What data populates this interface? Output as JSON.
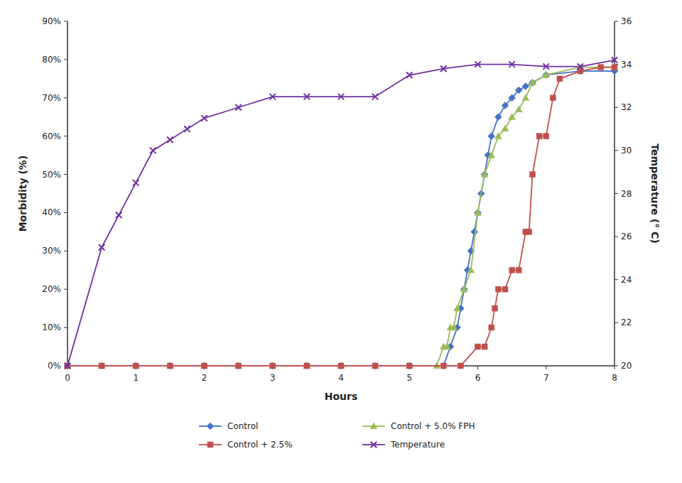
{
  "chart_data": {
    "type": "line",
    "xlabel": "Hours",
    "ylabel": "Morbidity (%)",
    "y2label": "Temperature (° C)",
    "xlim": [
      0,
      8
    ],
    "xticks": [
      0,
      1,
      2,
      3,
      4,
      5,
      6,
      7,
      8
    ],
    "ylim": [
      0,
      0.9
    ],
    "yticks": [
      {
        "value": 0,
        "label": "0%"
      },
      {
        "value": 0.1,
        "label": "10%"
      },
      {
        "value": 0.2,
        "label": "20%"
      },
      {
        "value": 0.3,
        "label": "30%"
      },
      {
        "value": 0.4,
        "label": "40%"
      },
      {
        "value": 0.5,
        "label": "50%"
      },
      {
        "value": 0.6,
        "label": "60%"
      },
      {
        "value": 0.7,
        "label": "70%"
      },
      {
        "value": 0.8,
        "label": "80%"
      },
      {
        "value": 0.9,
        "label": "90%"
      }
    ],
    "y2lim": [
      20,
      36
    ],
    "y2ticks": [
      20,
      22,
      24,
      26,
      28,
      30,
      32,
      34,
      36
    ],
    "grid": false,
    "legend": "bottom",
    "series": [
      {
        "name": "Control",
        "color": "#4472C4",
        "marker": "diamond",
        "x": [
          0,
          0.5,
          1.0,
          1.5,
          2.0,
          2.5,
          3.0,
          3.5,
          4.0,
          4.5,
          5.0,
          5.5,
          5.6,
          5.7,
          5.75,
          5.8,
          5.85,
          5.9,
          5.95,
          6.0,
          6.05,
          6.1,
          6.15,
          6.2,
          6.3,
          6.4,
          6.5,
          6.6,
          6.7,
          6.8,
          7.0,
          7.5,
          8.0
        ],
        "values": [
          0,
          0,
          0,
          0,
          0,
          0,
          0,
          0,
          0,
          0,
          0,
          0,
          0.05,
          0.1,
          0.15,
          0.2,
          0.25,
          0.3,
          0.35,
          0.4,
          0.45,
          0.5,
          0.55,
          0.6,
          0.65,
          0.68,
          0.7,
          0.72,
          0.73,
          0.74,
          0.76,
          0.77,
          0.77
        ]
      },
      {
        "name": "Control + 5.0% FPH",
        "color": "#9BBB59",
        "marker": "triangle",
        "x": [
          0,
          0.5,
          1.0,
          1.5,
          2.0,
          2.5,
          3.0,
          3.5,
          4.0,
          4.5,
          5.0,
          5.4,
          5.5,
          5.55,
          5.6,
          5.65,
          5.7,
          5.8,
          5.9,
          6.0,
          6.1,
          6.2,
          6.3,
          6.4,
          6.5,
          6.6,
          6.7,
          6.8,
          7.0,
          7.5,
          8.0
        ],
        "values": [
          0,
          0,
          0,
          0,
          0,
          0,
          0,
          0,
          0,
          0,
          0,
          0,
          0.05,
          0.05,
          0.1,
          0.1,
          0.15,
          0.2,
          0.25,
          0.4,
          0.5,
          0.55,
          0.6,
          0.62,
          0.65,
          0.67,
          0.7,
          0.74,
          0.76,
          0.78,
          0.78
        ]
      },
      {
        "name": "Control + 2.5%",
        "color": "#C0504D",
        "marker": "square",
        "x": [
          0,
          0.5,
          1.0,
          1.5,
          2.0,
          2.5,
          3.0,
          3.5,
          4.0,
          4.5,
          5.0,
          5.5,
          5.75,
          6.0,
          6.1,
          6.2,
          6.25,
          6.3,
          6.4,
          6.5,
          6.6,
          6.7,
          6.75,
          6.8,
          6.9,
          7.0,
          7.1,
          7.2,
          7.5,
          7.8,
          8.0
        ],
        "values": [
          0,
          0,
          0,
          0,
          0,
          0,
          0,
          0,
          0,
          0,
          0,
          0,
          0.0,
          0.05,
          0.05,
          0.1,
          0.15,
          0.2,
          0.2,
          0.25,
          0.25,
          0.35,
          0.35,
          0.5,
          0.6,
          0.6,
          0.7,
          0.75,
          0.77,
          0.78,
          0.78
        ]
      },
      {
        "name": "Temperature",
        "color": "#7030A0",
        "marker": "x",
        "axis": "y2",
        "x": [
          0,
          0.5,
          0.75,
          1.0,
          1.25,
          1.5,
          1.75,
          2.0,
          2.5,
          3.0,
          3.5,
          4.0,
          4.5,
          5.0,
          5.5,
          6.0,
          6.5,
          7.0,
          7.5,
          8.0
        ],
        "values": [
          20,
          25.5,
          27.0,
          28.5,
          30.0,
          30.5,
          31.0,
          31.5,
          32.0,
          32.5,
          32.5,
          32.5,
          32.5,
          33.5,
          33.8,
          34.0,
          34.0,
          33.9,
          33.9,
          34.2
        ]
      }
    ]
  }
}
